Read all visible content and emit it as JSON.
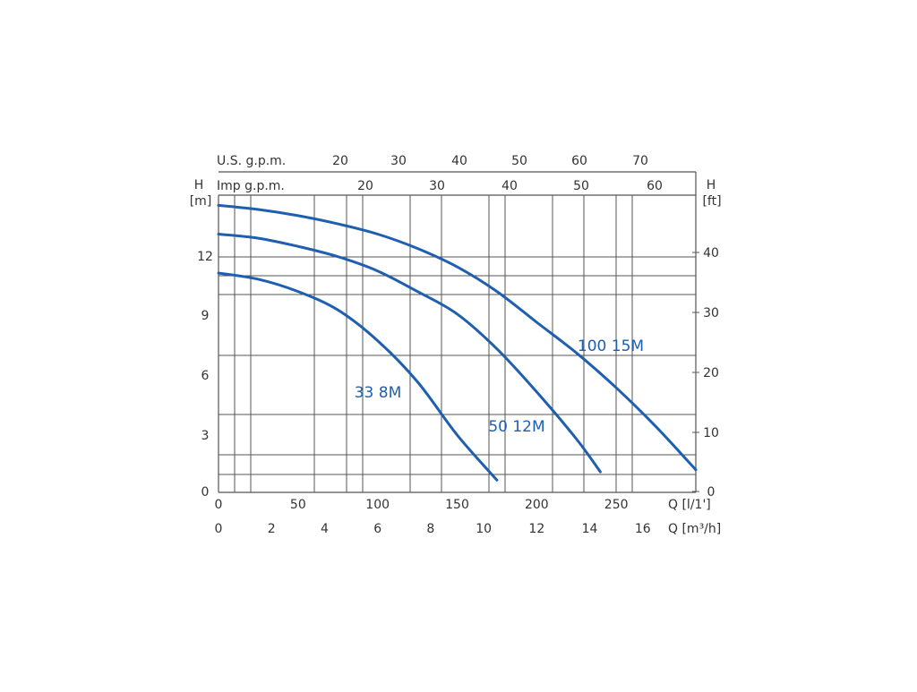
{
  "chart_data": {
    "type": "line",
    "title": "",
    "colors": {
      "curve": "#1f5fb0",
      "grid": "#555555",
      "text": "#333333"
    },
    "grid": true,
    "axes": {
      "top_us": {
        "label": "U.S. g.p.m.",
        "ticks": [
          "20",
          "30",
          "40",
          "50",
          "60",
          "70"
        ]
      },
      "top_imp": {
        "label": "Imp g.p.m.",
        "ticks": [
          "20",
          "30",
          "40",
          "50",
          "60"
        ]
      },
      "left": {
        "unit_top": "H",
        "unit_bottom": "[m]",
        "ticks": [
          "0",
          "3",
          "6",
          "9",
          "12"
        ],
        "ylim": [
          0,
          14.5
        ]
      },
      "right": {
        "unit_top": "H",
        "unit_bottom": "[ft]",
        "ticks": [
          "0",
          "10",
          "20",
          "30",
          "40"
        ]
      },
      "bottom_lmin": {
        "label": "Q [l/1']",
        "ticks": [
          "0",
          "50",
          "100",
          "150",
          "200",
          "250"
        ],
        "xlim": [
          0,
          300
        ]
      },
      "bottom_m3h": {
        "label": "Q [m³/h]",
        "ticks": [
          "0",
          "2",
          "4",
          "6",
          "8",
          "10",
          "12",
          "14",
          "16"
        ]
      }
    },
    "series": [
      {
        "name": "33 8M",
        "x": [
          0,
          25,
          50,
          75,
          100,
          125,
          150,
          175
        ],
        "y": [
          10.7,
          10.4,
          9.8,
          8.9,
          7.4,
          5.4,
          2.8,
          0.6
        ]
      },
      {
        "name": "50 12M",
        "x": [
          0,
          25,
          50,
          75,
          100,
          125,
          150,
          175,
          200,
          225,
          240
        ],
        "y": [
          12.6,
          12.4,
          12.0,
          11.5,
          10.8,
          9.8,
          8.7,
          7.0,
          4.9,
          2.6,
          1.0
        ]
      },
      {
        "name": "100 15M",
        "x": [
          0,
          25,
          50,
          75,
          100,
          125,
          150,
          175,
          200,
          225,
          250,
          275,
          300
        ],
        "y": [
          14.0,
          13.8,
          13.5,
          13.1,
          12.6,
          11.9,
          11.0,
          9.8,
          8.3,
          6.8,
          5.1,
          3.2,
          1.1
        ]
      }
    ]
  }
}
